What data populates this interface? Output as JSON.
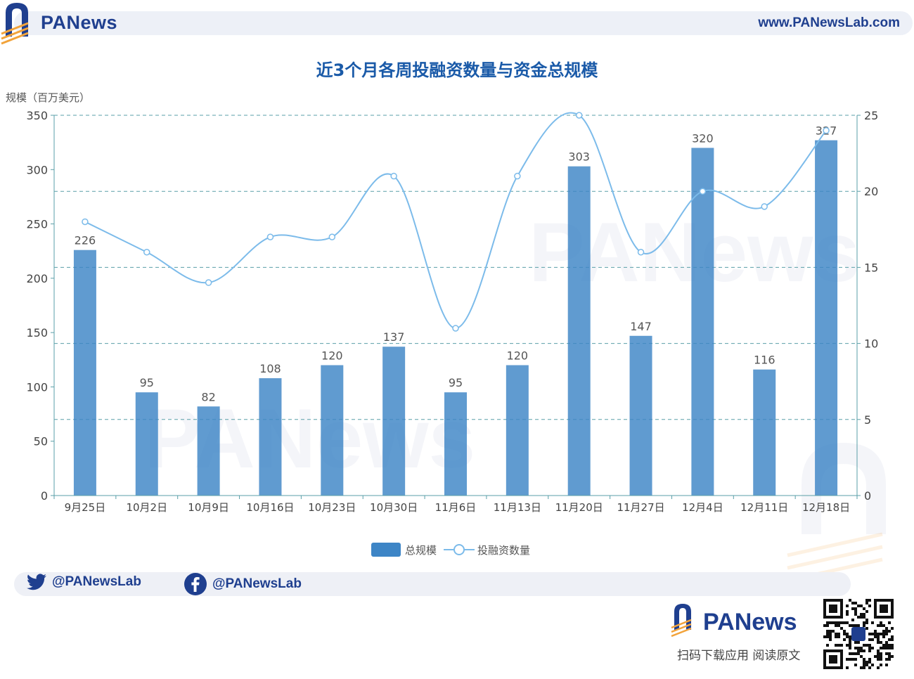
{
  "header": {
    "brand": "PANews",
    "url": "www.PANewsLab.com"
  },
  "chart_data": {
    "type": "bar",
    "title": "近3个月各周投融资数量与资金总规模",
    "ylabel_left": "规模（百万美元）",
    "categories": [
      "9月25日",
      "10月2日",
      "10月9日",
      "10月16日",
      "10月23日",
      "10月30日",
      "11月6日",
      "11月13日",
      "11月20日",
      "11月27日",
      "12月4日",
      "12月11日",
      "12月18日"
    ],
    "series": [
      {
        "name": "总规模",
        "type": "bar",
        "axis": "left",
        "color": "#3d85c6",
        "values": [
          226,
          95,
          82,
          108,
          120,
          137,
          95,
          120,
          303,
          147,
          320,
          116,
          327
        ]
      },
      {
        "name": "投融资数量",
        "type": "line",
        "axis": "right",
        "color": "#7cbbea",
        "values": [
          18,
          16,
          14,
          17,
          17,
          21,
          11,
          21,
          25,
          16,
          20,
          19,
          24
        ]
      }
    ],
    "ylim_left": [
      0,
      350
    ],
    "yticks_left": [
      0,
      50,
      100,
      150,
      200,
      250,
      300,
      350
    ],
    "ylim_right": [
      0,
      25
    ],
    "yticks_right": [
      0,
      5,
      10,
      15,
      20,
      25
    ],
    "grid": true,
    "legend": "bottom-center"
  },
  "social": {
    "twitter": "@PANewsLab",
    "facebook": "@PANewsLab"
  },
  "footer": {
    "brand": "PANews",
    "caption": "扫码下载应用  阅读原文"
  },
  "colors": {
    "brand_blue": "#1f3f8f",
    "title_blue": "#1a5aa8",
    "bar": "#3d85c6",
    "line": "#7cbbea",
    "accent_orange": "#f2a33a"
  }
}
